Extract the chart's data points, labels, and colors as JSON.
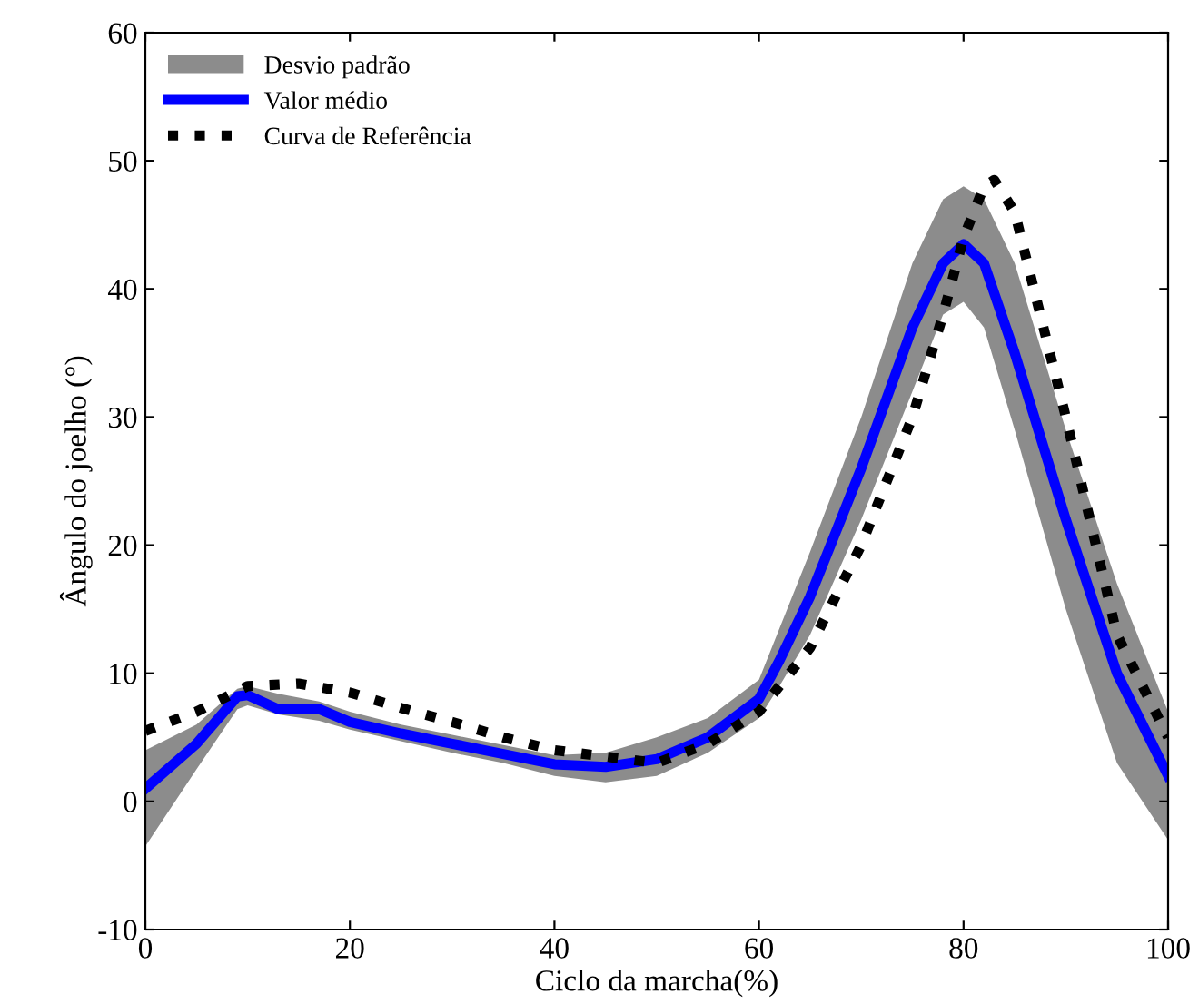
{
  "chart_data": {
    "type": "line",
    "xlabel": "Ciclo da marcha(%)",
    "ylabel": "Ângulo do joelho (°)",
    "xlim": [
      0,
      100
    ],
    "xticks": [
      0,
      20,
      40,
      60,
      80,
      100
    ],
    "ylim": [
      -10,
      60
    ],
    "yticks": [
      -10,
      0,
      10,
      20,
      30,
      40,
      50,
      60
    ],
    "grid": false,
    "legend": "top left",
    "series": [
      {
        "name": "Desvio padrão",
        "type": "area",
        "color": "#8c8c8c"
      },
      {
        "name": "Valor médio",
        "color": "#0000ff",
        "line_style": "solid",
        "x": [
          0,
          5,
          9,
          10,
          13,
          17,
          20,
          25,
          30,
          35,
          40,
          45,
          50,
          55,
          60,
          62,
          65,
          70,
          75,
          78,
          80,
          82,
          85,
          90,
          95,
          100
        ],
        "values": [
          1,
          4.5,
          8.2,
          8.3,
          7.2,
          7.2,
          6.2,
          5.3,
          4.5,
          3.7,
          2.9,
          2.7,
          3.3,
          5,
          8,
          11,
          16,
          26,
          37,
          42,
          43.5,
          42,
          35,
          22,
          10,
          2
        ],
        "lower": [
          -3.5,
          2.5,
          7.2,
          7.5,
          6.8,
          6.3,
          5.6,
          4.7,
          3.8,
          3.0,
          2.0,
          1.5,
          2,
          3.8,
          6.5,
          9,
          13,
          22,
          32,
          38,
          39,
          37,
          29,
          15,
          3,
          -3
        ],
        "upper": [
          4,
          6,
          8.8,
          9,
          8.4,
          7.8,
          7,
          6,
          5.2,
          4.4,
          3.6,
          3.8,
          5,
          6.5,
          9.5,
          13.5,
          19.5,
          30,
          42,
          47,
          48,
          47,
          42,
          29,
          17,
          7
        ]
      },
      {
        "name": "Curva de Referência",
        "color": "#000000",
        "line_style": "dotted",
        "x": [
          0,
          5,
          10,
          15,
          20,
          25,
          30,
          35,
          40,
          45,
          50,
          55,
          60,
          65,
          70,
          75,
          78,
          80,
          82,
          83,
          85,
          90,
          95,
          100
        ],
        "values": [
          5.5,
          7,
          9,
          9.2,
          8.5,
          7.3,
          6.2,
          5,
          4,
          3.5,
          3,
          4.5,
          7,
          12,
          20,
          30,
          38,
          44,
          48,
          48.5,
          46,
          30,
          13,
          5
        ]
      }
    ]
  }
}
